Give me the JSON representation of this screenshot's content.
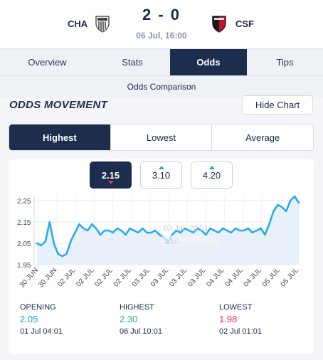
{
  "match": {
    "home_team": "CHA",
    "away_team": "CSF",
    "score": "2 - 0",
    "kickoff": "06 Jul, 16:00"
  },
  "tabs": [
    {
      "label": "Overview"
    },
    {
      "label": "Stats"
    },
    {
      "label": "Odds"
    },
    {
      "label": "Tips"
    }
  ],
  "subnav": {
    "label": "Odds Comparison"
  },
  "section": {
    "title": "ODDS MOVEMENT",
    "hide_chart_label": "Hide Chart"
  },
  "segments": [
    {
      "label": "Highest"
    },
    {
      "label": "Lowest"
    },
    {
      "label": "Average"
    }
  ],
  "odds_selector": [
    {
      "value": "2.15",
      "trend": "down"
    },
    {
      "value": "3.10",
      "trend": "up"
    },
    {
      "value": "4.20",
      "trend": "up"
    }
  ],
  "colors": {
    "navy": "#1d2d4e",
    "line": "#29aaf0",
    "up": "#2bb673",
    "down": "#e6394f",
    "opening": "#1f9be0"
  },
  "chart_data": {
    "type": "area",
    "y_ticks": [
      "2.25",
      "2.15",
      "2.05",
      "1.95"
    ],
    "ylim": [
      1.95,
      2.25
    ],
    "x_tick_labels": [
      "30 JUN",
      "30 JUN",
      "02 JUL",
      "02 JUL",
      "02 JUL",
      "02 JUL",
      "03 JUL",
      "03 JUL",
      "03 JUL",
      "03 JUL",
      "04 JUL",
      "04 JUL",
      "04 JUL",
      "05 JUL",
      "05 JUL"
    ],
    "tooltip": {
      "date": "03 Jul, 20:01",
      "value": "2.10"
    },
    "grid": true,
    "series": [
      {
        "values": [
          2.05,
          2.04,
          2.06,
          2.15,
          2.05,
          2.0,
          1.99,
          2.0,
          2.06,
          2.1,
          2.14,
          2.12,
          2.11,
          2.14,
          2.12,
          2.09,
          2.11,
          2.11,
          2.1,
          2.12,
          2.11,
          2.09,
          2.12,
          2.11,
          2.1,
          2.12,
          2.1,
          2.1,
          2.11,
          2.09,
          2.08,
          2.05,
          2.09,
          2.11,
          2.1,
          2.12,
          2.11,
          2.1,
          2.12,
          2.11,
          2.09,
          2.12,
          2.11,
          2.1,
          2.12,
          2.11,
          2.1,
          2.12,
          2.11,
          2.11,
          2.12,
          2.1,
          2.11,
          2.12,
          2.09,
          2.14,
          2.2,
          2.23,
          2.22,
          2.2,
          2.25,
          2.27,
          2.24
        ]
      }
    ]
  },
  "stats": [
    {
      "label": "OPENING",
      "value": "2.05",
      "time": "01 Jul 04:01",
      "color": "#1f9be0"
    },
    {
      "label": "HIGHEST",
      "value": "2.30",
      "time": "06 Jul 10:01",
      "color": "#2bb673"
    },
    {
      "label": "LOWEST",
      "value": "1.98",
      "time": "02 Jul 01:01",
      "color": "#e6394f"
    }
  ]
}
